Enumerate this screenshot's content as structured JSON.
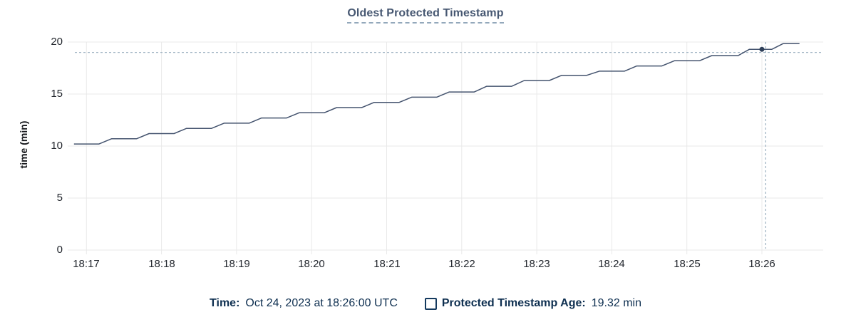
{
  "header": {
    "title": "Oldest Protected Timestamp"
  },
  "tooltip": {
    "time_label": "Time:",
    "time_value": "Oct 24, 2023 at 18:26:00 UTC",
    "series_label": "Protected Timestamp Age:",
    "series_value": "19.32 min"
  },
  "chart_data": {
    "type": "line",
    "title": "Oldest Protected Timestamp",
    "xlabel": "",
    "ylabel": "time (min)",
    "ylim": [
      0,
      20
    ],
    "grid": true,
    "legend_position": "bottom",
    "x_range": [
      "18:16:45",
      "18:26:49"
    ],
    "yticks": [
      {
        "v": 20,
        "label": "20"
      },
      {
        "v": 15,
        "label": "15"
      },
      {
        "v": 10,
        "label": "10"
      },
      {
        "v": 5,
        "label": "5"
      },
      {
        "v": 0,
        "label": "0"
      }
    ],
    "xticks": [
      {
        "t": "18:17:00",
        "label": "18:17"
      },
      {
        "t": "18:18:00",
        "label": "18:18"
      },
      {
        "t": "18:19:00",
        "label": "18:19"
      },
      {
        "t": "18:20:00",
        "label": "18:20"
      },
      {
        "t": "18:21:00",
        "label": "18:21"
      },
      {
        "t": "18:22:00",
        "label": "18:22"
      },
      {
        "t": "18:23:00",
        "label": "18:23"
      },
      {
        "t": "18:24:00",
        "label": "18:24"
      },
      {
        "t": "18:25:00",
        "label": "18:25"
      },
      {
        "t": "18:26:00",
        "label": "18:26"
      }
    ],
    "series": [
      {
        "name": "Protected Timestamp Age",
        "unit": "min",
        "color": "#44536e",
        "points": [
          [
            "18:16:50",
            10.2
          ],
          [
            "18:17:10",
            10.2
          ],
          [
            "18:17:20",
            10.7
          ],
          [
            "18:17:40",
            10.7
          ],
          [
            "18:17:50",
            11.2
          ],
          [
            "18:18:10",
            11.2
          ],
          [
            "18:18:20",
            11.7
          ],
          [
            "18:18:40",
            11.7
          ],
          [
            "18:18:50",
            12.2
          ],
          [
            "18:19:10",
            12.2
          ],
          [
            "18:19:20",
            12.7
          ],
          [
            "18:19:40",
            12.7
          ],
          [
            "18:19:50",
            13.2
          ],
          [
            "18:20:10",
            13.2
          ],
          [
            "18:20:20",
            13.7
          ],
          [
            "18:20:40",
            13.7
          ],
          [
            "18:20:50",
            14.2
          ],
          [
            "18:21:10",
            14.2
          ],
          [
            "18:21:20",
            14.7
          ],
          [
            "18:21:40",
            14.7
          ],
          [
            "18:21:50",
            15.2
          ],
          [
            "18:22:10",
            15.2
          ],
          [
            "18:22:20",
            15.75
          ],
          [
            "18:22:40",
            15.75
          ],
          [
            "18:22:50",
            16.3
          ],
          [
            "18:23:10",
            16.3
          ],
          [
            "18:23:20",
            16.8
          ],
          [
            "18:23:40",
            16.8
          ],
          [
            "18:23:50",
            17.2
          ],
          [
            "18:24:10",
            17.2
          ],
          [
            "18:24:20",
            17.7
          ],
          [
            "18:24:40",
            17.7
          ],
          [
            "18:24:50",
            18.2
          ],
          [
            "18:25:10",
            18.2
          ],
          [
            "18:25:20",
            18.7
          ],
          [
            "18:25:41",
            18.7
          ],
          [
            "18:25:50",
            19.3
          ],
          [
            "18:26:08",
            19.3
          ],
          [
            "18:26:17",
            19.85
          ],
          [
            "18:26:30",
            19.85
          ]
        ]
      }
    ],
    "hover": {
      "time": "18:26:00",
      "value": 19.3,
      "display_value": "19.32",
      "crosshair_time": "18:26:03",
      "crosshair_value": 19.0
    },
    "colors": {
      "grid": "#e9e9e9",
      "crosshair": "#a4b7c6",
      "dot": "#2e3f59",
      "title": "#475872",
      "tick_text": "#23272e",
      "tooltip_text": "#0e2f50"
    }
  }
}
